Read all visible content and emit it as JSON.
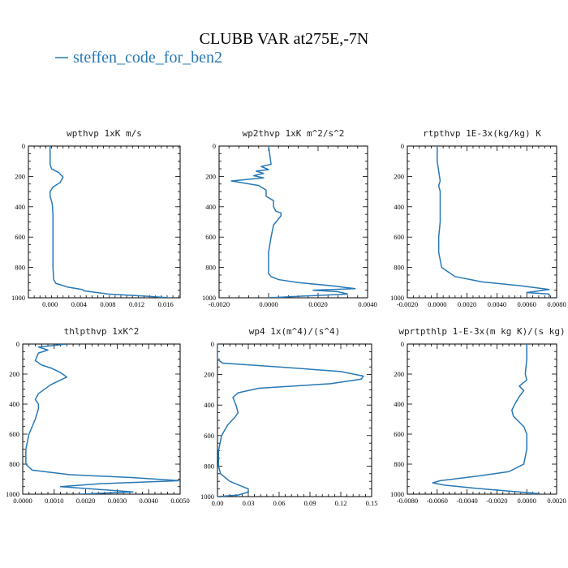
{
  "figure": {
    "title": "CLUBB VAR at275E,-7N",
    "legend_label": "steffen_code_for_ben2",
    "line_color": "#2878b5"
  },
  "chart_data": [
    {
      "type": "line",
      "title": "wpthvp  1xK m/s",
      "xlim": [
        -0.003,
        0.018
      ],
      "ylim": [
        1000,
        0
      ],
      "xticks": [
        0.0,
        0.004,
        0.008,
        0.012,
        0.016
      ],
      "xtick_labels": [
        "0.000",
        "0.004",
        "0.008",
        "0.012",
        "0.016"
      ],
      "yticks": [
        0,
        200,
        400,
        600,
        800,
        1000
      ],
      "ytick_labels": [
        "0",
        "200",
        "400",
        "600",
        "800",
        "1000"
      ],
      "series": [
        {
          "x": [
            0.0,
            0.0,
            0.0002,
            0.0012,
            0.0018,
            0.0014,
            0.0004,
            0.0,
            0.0,
            0.0003,
            0.0004,
            0.0004,
            0.0004,
            0.0004,
            0.0004,
            0.0005,
            0.0008,
            0.0025,
            0.0044,
            0.0048,
            0.008,
            0.0135,
            0.0165
          ],
          "y": [
            0,
            120,
            150,
            175,
            205,
            240,
            270,
            300,
            330,
            380,
            450,
            500,
            600,
            700,
            800,
            880,
            905,
            930,
            945,
            955,
            975,
            990,
            1000
          ]
        }
      ]
    },
    {
      "type": "line",
      "title": "wp2thvp  1xK m^2/s^2",
      "xlim": [
        -0.002,
        0.004
      ],
      "ylim": [
        1000,
        0
      ],
      "xticks": [
        -0.002,
        0.0,
        0.002,
        0.004
      ],
      "xtick_labels": [
        "-0.0020",
        "0.0000",
        "0.0020",
        "0.0040"
      ],
      "yticks": [
        0,
        200,
        400,
        600,
        800,
        1000
      ],
      "ytick_labels": [
        "0",
        "200",
        "400",
        "600",
        "800",
        "1000"
      ],
      "series": [
        {
          "x": [
            0.0,
            0.0001,
            -0.0003,
            0.0,
            -0.0005,
            -0.0002,
            -0.0006,
            -0.0002,
            -0.0015,
            -0.0004,
            -0.0001,
            -0.0001,
            0.0002,
            0.0002,
            0.0003,
            0.0005,
            0.0005,
            0.0002,
            0.0001,
            0.0,
            0.0,
            0.0,
            0.0001,
            0.0004,
            0.0012,
            0.0025,
            0.0035,
            0.0018,
            0.0028,
            0.0032,
            0.0
          ],
          "y": [
            0,
            120,
            135,
            155,
            165,
            180,
            195,
            210,
            230,
            260,
            290,
            330,
            360,
            400,
            430,
            440,
            460,
            520,
            600,
            700,
            800,
            840,
            860,
            880,
            900,
            920,
            940,
            950,
            960,
            975,
            1000
          ]
        }
      ]
    },
    {
      "type": "line",
      "title": "rtpthvp  1E-3x(kg/kg) K",
      "xlim": [
        -0.002,
        0.008
      ],
      "ylim": [
        1000,
        0
      ],
      "xticks": [
        -0.002,
        0.0,
        0.002,
        0.004,
        0.006,
        0.008
      ],
      "xtick_labels": [
        "-0.0020",
        "0.0000",
        "0.0020",
        "0.0040",
        "0.0060",
        "0.0080"
      ],
      "yticks": [
        0,
        200,
        400,
        600,
        800,
        1000
      ],
      "ytick_labels": [
        "0",
        "200",
        "400",
        "600",
        "800",
        "1000"
      ],
      "series": [
        {
          "x": [
            0.0,
            0.0,
            0.0002,
            0.0001,
            0.0002,
            0.0002,
            0.0002,
            0.0001,
            0.0001,
            0.0003,
            0.0012,
            0.003,
            0.0055,
            0.0075,
            0.006,
            0.0075,
            0.0075
          ],
          "y": [
            0,
            100,
            230,
            260,
            300,
            400,
            500,
            600,
            700,
            800,
            860,
            895,
            920,
            945,
            965,
            975,
            1000
          ]
        }
      ]
    },
    {
      "type": "line",
      "title": "thlpthvp  1xK^2",
      "xlim": [
        0.0,
        0.005
      ],
      "ylim": [
        1000,
        0
      ],
      "xticks": [
        0.0,
        0.001,
        0.002,
        0.003,
        0.004,
        0.005
      ],
      "xtick_labels": [
        "0.0000",
        "0.0010",
        "0.0020",
        "0.0030",
        "0.0040",
        "0.0050"
      ],
      "yticks": [
        0,
        200,
        400,
        600,
        800,
        1000
      ],
      "ytick_labels": [
        "0",
        "200",
        "400",
        "600",
        "800",
        "1000"
      ],
      "series": [
        {
          "x": [
            0.0014,
            0.0005,
            0.0008,
            0.0005,
            0.0004,
            0.0006,
            0.0009,
            0.0012,
            0.0014,
            0.0009,
            0.0005,
            0.0004,
            0.0005,
            0.0005,
            0.0004,
            0.0002,
            0.0001,
            0.0001,
            0.0003,
            0.0015,
            0.0035,
            0.005,
            0.0025,
            0.0012,
            0.0035,
            0.0018
          ],
          "y": [
            0,
            20,
            40,
            60,
            110,
            140,
            160,
            190,
            220,
            270,
            330,
            370,
            400,
            430,
            500,
            600,
            700,
            800,
            840,
            870,
            890,
            910,
            930,
            950,
            985,
            1000
          ]
        }
      ]
    },
    {
      "type": "line",
      "title": "wp4  1x(m^4)/(s^4)",
      "xlim": [
        0.0,
        0.15
      ],
      "ylim": [
        1000,
        0
      ],
      "xticks": [
        0.0,
        0.03,
        0.06,
        0.09,
        0.12,
        0.15
      ],
      "xtick_labels": [
        "0.00",
        "0.03",
        "0.06",
        "0.09",
        "0.12",
        "0.15"
      ],
      "yticks": [
        0,
        200,
        400,
        600,
        800,
        1000
      ],
      "ytick_labels": [
        "0",
        "200",
        "400",
        "600",
        "800",
        "1000"
      ],
      "series": [
        {
          "x": [
            0.0,
            0.0,
            0.005,
            0.06,
            0.12,
            0.142,
            0.14,
            0.11,
            0.04,
            0.02,
            0.015,
            0.018,
            0.02,
            0.017,
            0.01,
            0.004,
            0.001,
            0.001,
            0.003,
            0.012,
            0.03,
            0.03,
            0.02,
            0.0
          ],
          "y": [
            0,
            100,
            125,
            150,
            180,
            210,
            230,
            260,
            290,
            320,
            350,
            400,
            450,
            480,
            530,
            600,
            700,
            800,
            850,
            900,
            950,
            970,
            990,
            1000
          ]
        }
      ]
    },
    {
      "type": "line",
      "title": "wprtpthlp  1-E-3x(m kg K)/(s kg)",
      "xlim": [
        -0.008,
        0.002
      ],
      "ylim": [
        1000,
        0
      ],
      "xticks": [
        -0.008,
        -0.006,
        -0.004,
        -0.002,
        0.0,
        0.002
      ],
      "xtick_labels": [
        "-0.0080",
        "-0.0060",
        "-0.0040",
        "-0.0020",
        "0.0000",
        "0.0020"
      ],
      "yticks": [
        0,
        200,
        400,
        600,
        800,
        1000
      ],
      "ytick_labels": [
        "0",
        "200",
        "400",
        "600",
        "800",
        "1000"
      ],
      "series": [
        {
          "x": [
            0.0,
            0.0,
            -0.0001,
            0.0,
            -0.0005,
            -0.0002,
            -0.0005,
            -0.0008,
            -0.001,
            -0.0009,
            -0.0002,
            0.0,
            0.0,
            -0.0002,
            -0.0012,
            -0.0033,
            -0.0058,
            -0.0063,
            -0.0055,
            -0.0035,
            -0.0012,
            0.0007,
            0.0002
          ],
          "y": [
            0,
            100,
            200,
            240,
            280,
            310,
            350,
            400,
            440,
            480,
            550,
            600,
            700,
            800,
            850,
            880,
            910,
            925,
            940,
            960,
            980,
            995,
            1000
          ]
        }
      ]
    }
  ]
}
